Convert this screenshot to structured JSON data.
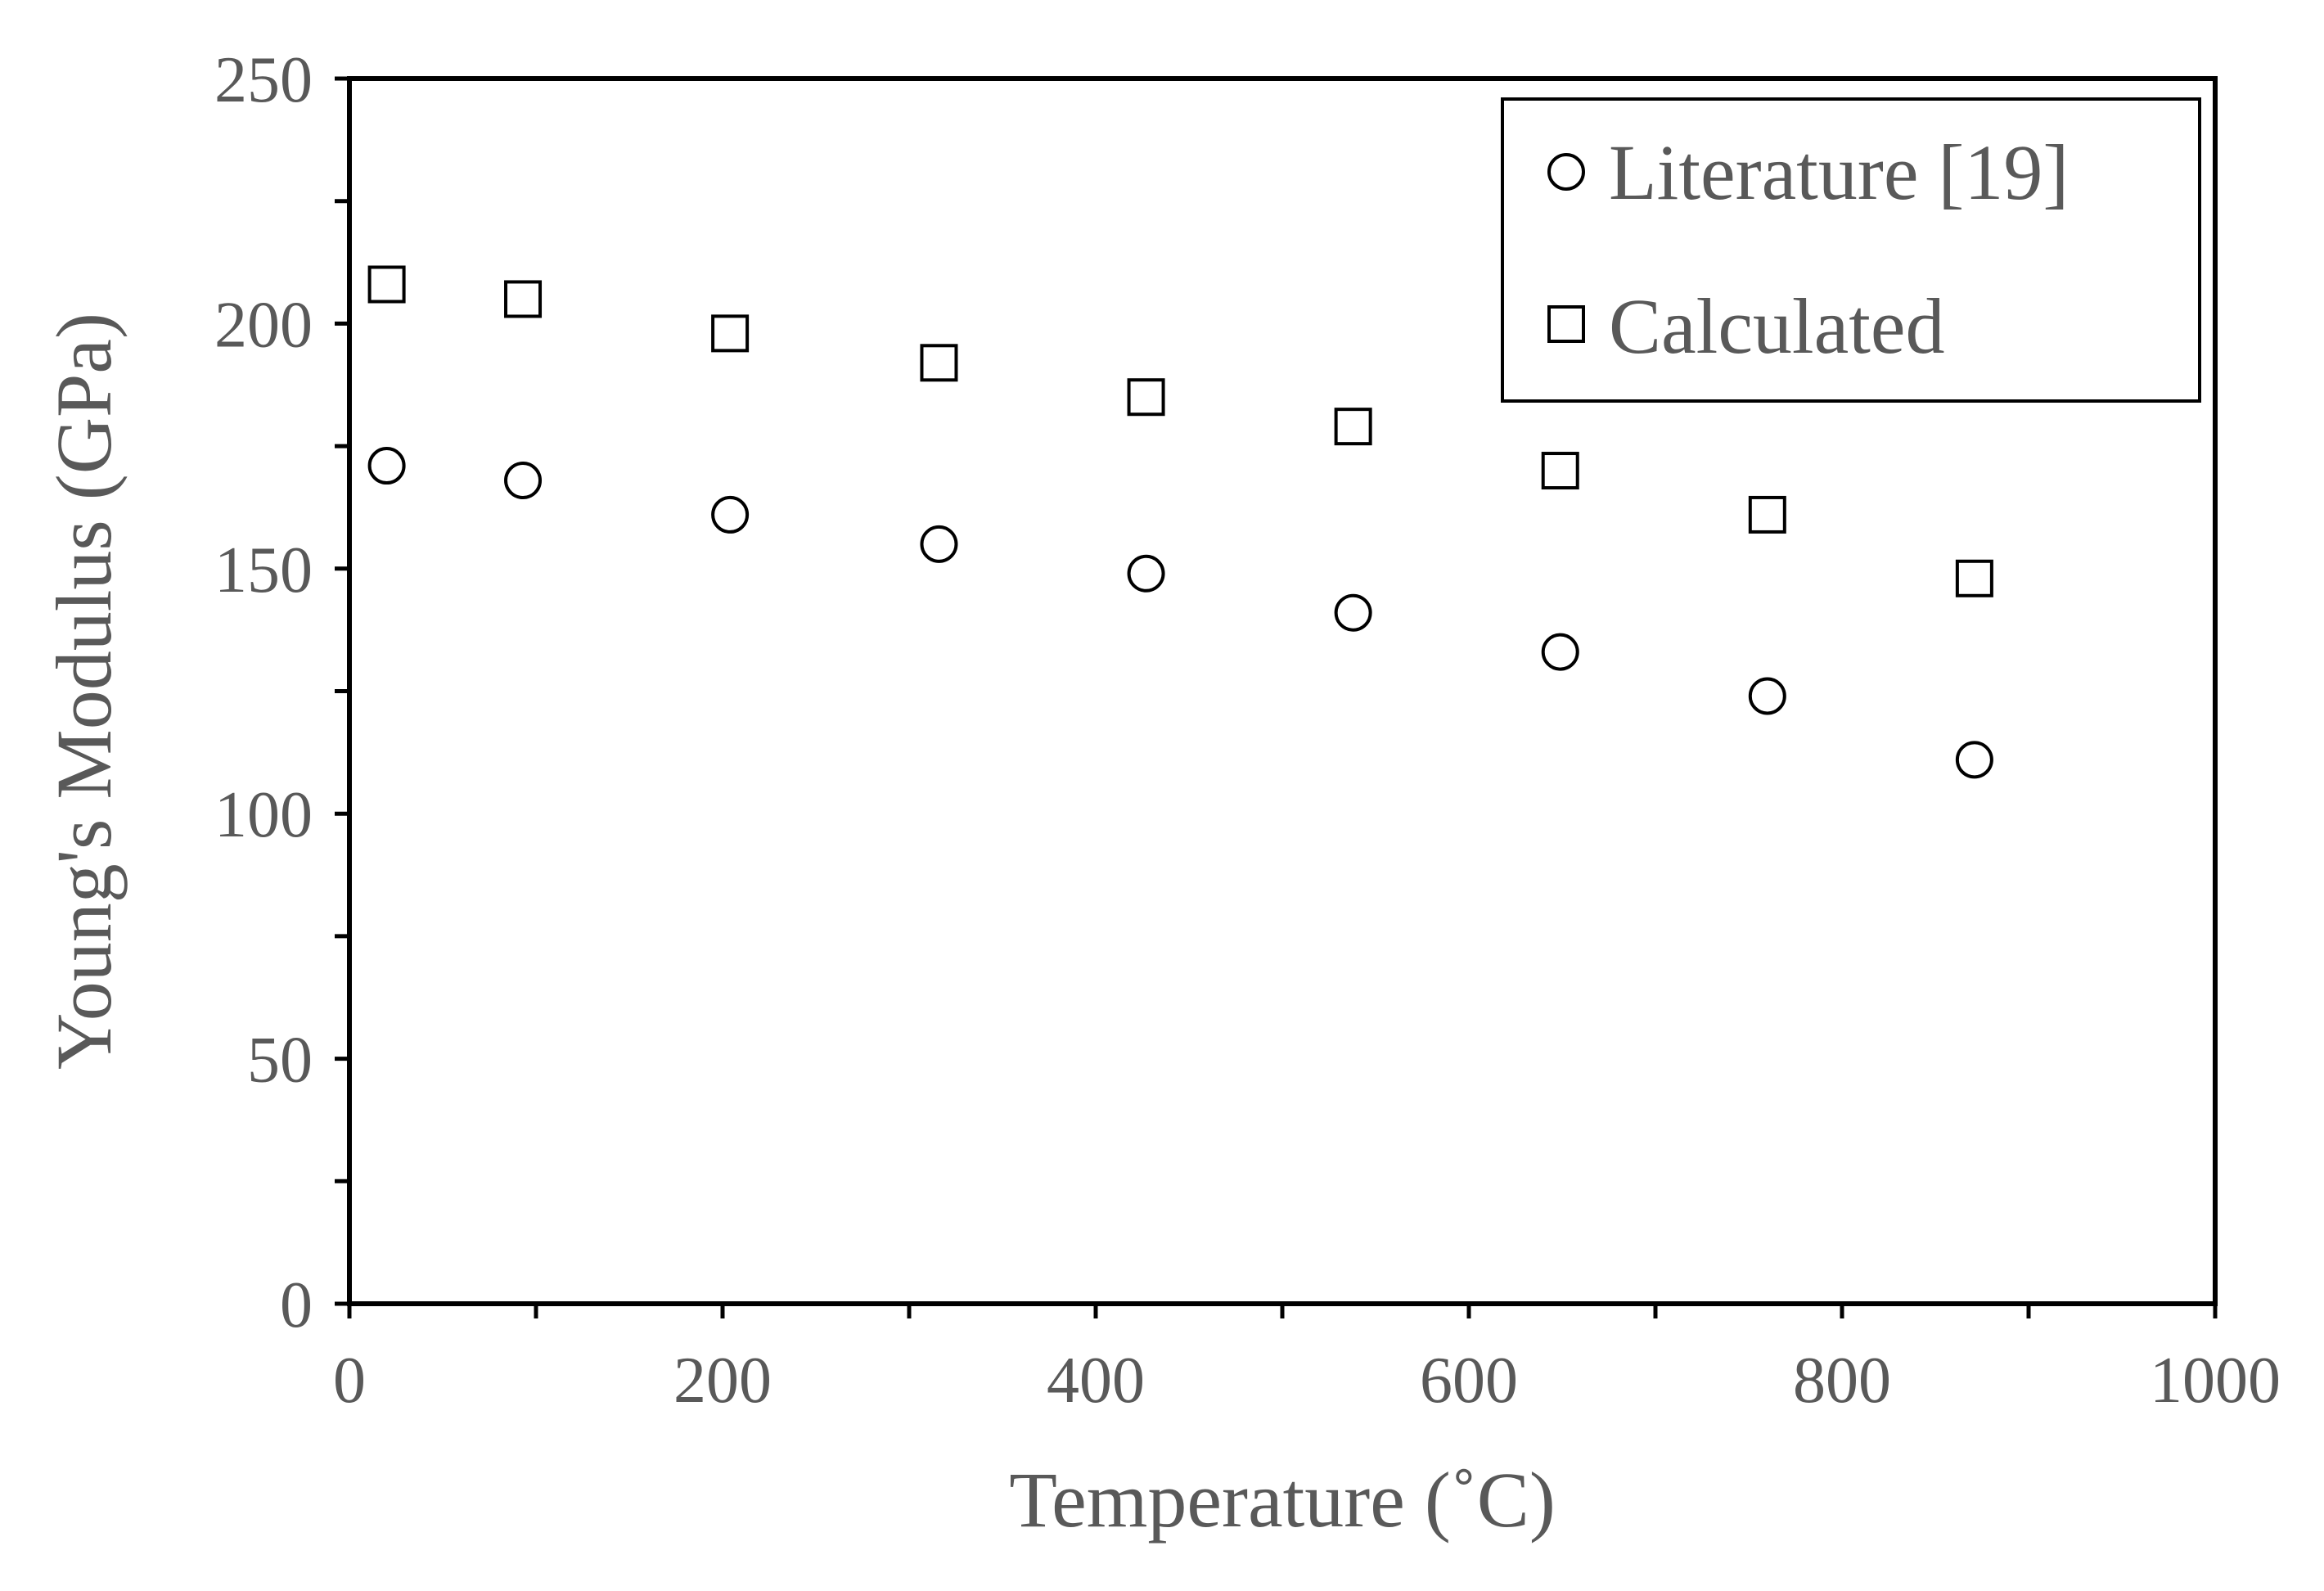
{
  "chart_data": {
    "type": "scatter",
    "xlabel": "Temperature (˚C)",
    "ylabel": "Young's Modulus (GPa)",
    "xlim": [
      0,
      1000
    ],
    "ylim": [
      0,
      250
    ],
    "x_ticks": [
      0,
      200,
      400,
      600,
      800,
      1000
    ],
    "y_ticks": [
      0,
      50,
      100,
      150,
      200,
      250
    ],
    "x_minor_step": 100,
    "y_minor_step": 25,
    "grid": false,
    "legend_position": "top-right",
    "series": [
      {
        "name": "Literature [19]",
        "marker": "circle",
        "x": [
          20,
          93,
          204,
          316,
          427,
          538,
          649,
          760,
          871
        ],
        "y": [
          171,
          168,
          161,
          155,
          149,
          141,
          133,
          124,
          111
        ]
      },
      {
        "name": "Calculated",
        "marker": "square",
        "x": [
          20,
          93,
          204,
          316,
          427,
          538,
          649,
          760,
          871
        ],
        "y": [
          208,
          205,
          198,
          192,
          185,
          179,
          170,
          161,
          148
        ]
      }
    ]
  }
}
